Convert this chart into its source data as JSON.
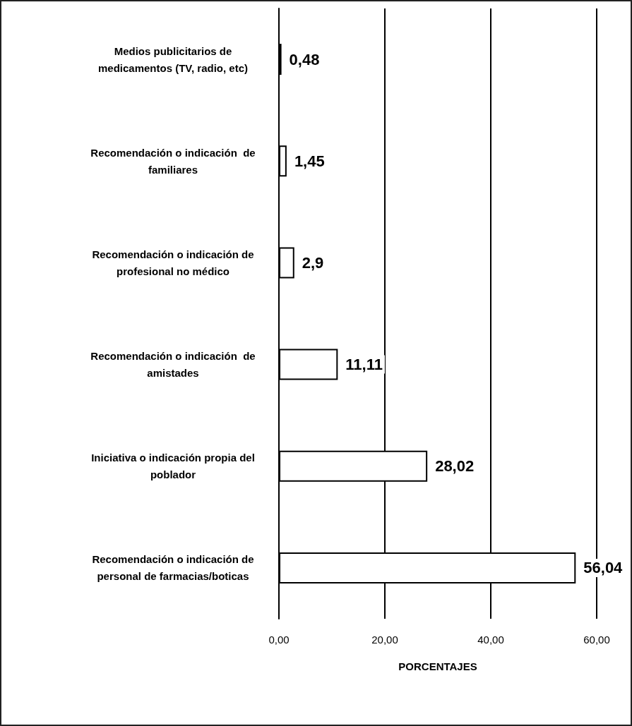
{
  "chart_data": {
    "type": "bar",
    "orientation": "horizontal",
    "categories": [
      "Medios publicitarios de\nmedicamentos (TV, radio, etc)",
      "Recomendación o indicación  de\nfamiliares",
      "Recomendación o indicación de\nprofesional no médico",
      "Recomendación o indicación  de\namistades",
      "Iniciativa o indicación propia del\npoblador",
      "Recomendación o indicación de\npersonal de farmacias/boticas"
    ],
    "values": [
      0.48,
      1.45,
      2.9,
      11.11,
      28.02,
      56.04
    ],
    "value_labels": [
      "0,48",
      "1,45",
      "2,9",
      "11,11",
      "28,02",
      "56,04"
    ],
    "color": "#ffffff",
    "xlabel": "PORCENTAJES",
    "xlim": [
      0,
      60
    ],
    "xticks": [
      {
        "value": 0,
        "label": "0,00"
      },
      {
        "value": 20,
        "label": "20,00"
      },
      {
        "value": 40,
        "label": "40,00"
      },
      {
        "value": 60,
        "label": "60,00"
      }
    ],
    "grid": "x"
  }
}
